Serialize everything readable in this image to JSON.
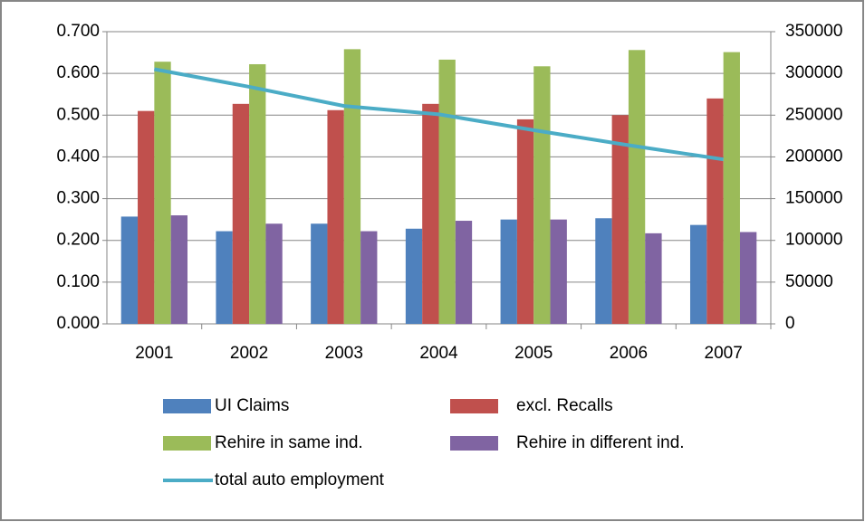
{
  "chart_data": {
    "type": "bar",
    "categories": [
      "2001",
      "2002",
      "2003",
      "2004",
      "2005",
      "2006",
      "2007"
    ],
    "series": [
      {
        "name": "UI Claims",
        "color": "#4f81bd",
        "values": [
          0.257,
          0.222,
          0.24,
          0.228,
          0.25,
          0.253,
          0.237
        ]
      },
      {
        "name": "excl. Recalls",
        "color": "#c0504d",
        "values": [
          0.51,
          0.527,
          0.512,
          0.527,
          0.49,
          0.5,
          0.54
        ]
      },
      {
        "name": "Rehire in same ind.",
        "color": "#9bbb59",
        "values": [
          0.628,
          0.622,
          0.658,
          0.633,
          0.617,
          0.656,
          0.651
        ]
      },
      {
        "name": "Rehire in different ind.",
        "color": "#8064a2",
        "values": [
          0.26,
          0.24,
          0.222,
          0.247,
          0.25,
          0.217,
          0.22
        ]
      },
      {
        "name": "total auto employment",
        "color": "#4bacc6",
        "type": "line",
        "axis": "y2",
        "values": [
          305000,
          284000,
          261000,
          251000,
          232000,
          214000,
          197000
        ]
      }
    ],
    "ylim": [
      0,
      0.7
    ],
    "yticks": [
      {
        "value": 0,
        "label": "0.000"
      },
      {
        "value": 0.1,
        "label": "0.100"
      },
      {
        "value": 0.2,
        "label": "0.200"
      },
      {
        "value": 0.3,
        "label": "0.300"
      },
      {
        "value": 0.4,
        "label": "0.400"
      },
      {
        "value": 0.5,
        "label": "0.500"
      },
      {
        "value": 0.6,
        "label": "0.600"
      },
      {
        "value": 0.7,
        "label": "0.700"
      }
    ],
    "y2lim": [
      0,
      350000
    ],
    "y2ticks": [
      0,
      50000,
      100000,
      150000,
      200000,
      250000,
      300000,
      350000
    ],
    "grid": true
  }
}
